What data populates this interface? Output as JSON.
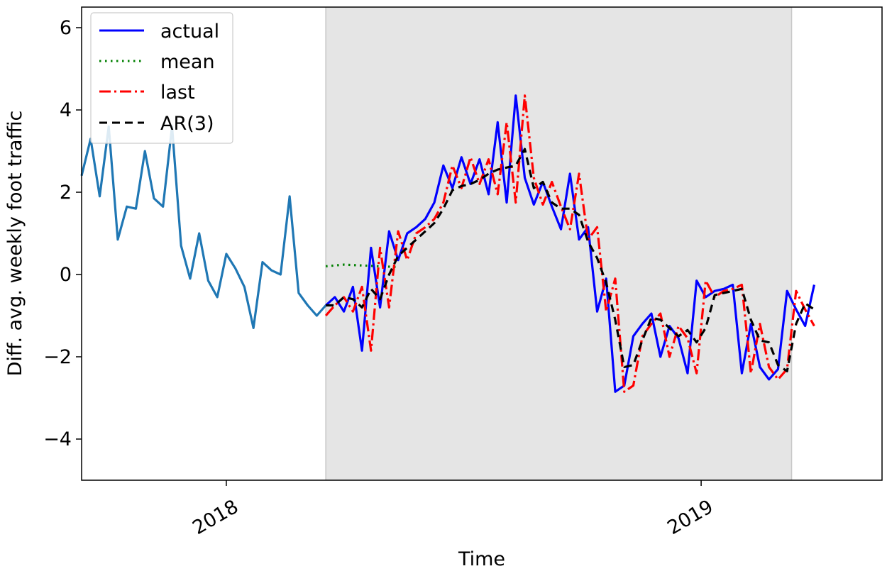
{
  "chart_data": {
    "type": "line",
    "title": "",
    "xlabel": "Time",
    "ylabel": "Diff. avg. weekly foot traffic",
    "xlim": [
      0,
      88.5
    ],
    "ylim": [
      -5,
      6.5
    ],
    "yticks": [
      -4,
      -2,
      0,
      2,
      4,
      6
    ],
    "yticklabels": [
      "−4",
      "−2",
      "0",
      "2",
      "4",
      "6"
    ],
    "xticks": [
      {
        "x": 16,
        "label": "2018"
      },
      {
        "x": 68.5,
        "label": "2019"
      }
    ],
    "grid": false,
    "legend": {
      "location": "upper left",
      "entries": [
        "actual",
        "mean",
        "last",
        "AR(3)"
      ]
    },
    "test_region": {
      "x_start": 27,
      "x_end": 78.5,
      "color": "#e5e5e5"
    },
    "series": [
      {
        "name": "train",
        "color": "#1f77b4",
        "dash": "",
        "x_start": 0,
        "values": [
          2.4,
          3.3,
          1.9,
          3.6,
          0.85,
          1.65,
          1.6,
          3.0,
          1.85,
          1.65,
          3.6,
          0.7,
          -0.1,
          1.0,
          -0.15,
          -0.55,
          0.5,
          0.15,
          -0.3,
          -1.3,
          0.3,
          0.1,
          0.0,
          1.9,
          -0.45,
          -0.75,
          -1.0,
          -0.75
        ]
      },
      {
        "name": "actual",
        "color": "#0000ff",
        "dash": "",
        "x_start": 27,
        "values": [
          -0.75,
          -0.55,
          -0.9,
          -0.3,
          -1.85,
          0.65,
          -0.8,
          1.05,
          0.35,
          1.0,
          1.15,
          1.35,
          1.75,
          2.65,
          2.1,
          2.85,
          2.2,
          2.8,
          1.95,
          3.7,
          1.75,
          4.35,
          2.35,
          1.7,
          2.25,
          1.65,
          1.1,
          2.45,
          0.85,
          1.15,
          -0.9,
          -0.1,
          -2.85,
          -2.7,
          -1.5,
          -1.2,
          -0.95,
          -2.0,
          -1.25,
          -1.55,
          -2.4,
          -0.15,
          -0.55,
          -0.4,
          -0.35,
          -0.25,
          -2.4,
          -1.2,
          -2.25,
          -2.55,
          -2.3,
          -0.4,
          -0.85,
          -1.25,
          -0.25
        ]
      },
      {
        "name": "mean",
        "color": "#008000",
        "dash": "2.5 5.5",
        "x_start": 27,
        "values": [
          0.2,
          0.22,
          0.24,
          0.23,
          0.22,
          0.21,
          0.2,
          0.19,
          0.18
        ]
      },
      {
        "name": "last",
        "color": "#ff0000",
        "dash": "16 5 3 5",
        "x_start": 27,
        "values": [
          -1.0,
          -0.75,
          -0.55,
          -0.9,
          -0.3,
          -1.85,
          0.65,
          -0.8,
          1.05,
          0.35,
          1.0,
          1.15,
          1.35,
          1.75,
          2.65,
          2.1,
          2.85,
          2.2,
          2.8,
          1.95,
          3.7,
          1.75,
          4.35,
          2.35,
          1.7,
          2.25,
          1.65,
          1.1,
          2.45,
          0.85,
          1.15,
          -0.9,
          -0.1,
          -2.85,
          -2.7,
          -1.5,
          -1.2,
          -0.95,
          -2.0,
          -1.25,
          -1.55,
          -2.4,
          -0.15,
          -0.55,
          -0.4,
          -0.35,
          -0.25,
          -2.4,
          -1.2,
          -2.25,
          -2.55,
          -2.3,
          -0.4,
          -0.85,
          -1.25
        ]
      },
      {
        "name": "AR(3)",
        "color": "#000000",
        "dash": "11 7",
        "x_start": 27,
        "values": [
          -0.75,
          -0.75,
          -0.55,
          -0.6,
          -0.8,
          -0.35,
          -0.6,
          0.0,
          0.45,
          0.65,
          0.85,
          1.05,
          1.25,
          1.6,
          2.05,
          2.15,
          2.2,
          2.3,
          2.45,
          2.55,
          2.6,
          2.65,
          3.05,
          2.1,
          2.25,
          1.75,
          1.6,
          1.6,
          1.45,
          0.8,
          0.4,
          -0.2,
          -1.1,
          -2.25,
          -2.2,
          -1.6,
          -1.05,
          -1.1,
          -1.3,
          -1.5,
          -1.35,
          -1.65,
          -1.3,
          -0.5,
          -0.45,
          -0.4,
          -0.35,
          -1.1,
          -1.6,
          -1.65,
          -2.2,
          -2.35,
          -1.2,
          -0.7,
          -0.85
        ]
      }
    ]
  }
}
